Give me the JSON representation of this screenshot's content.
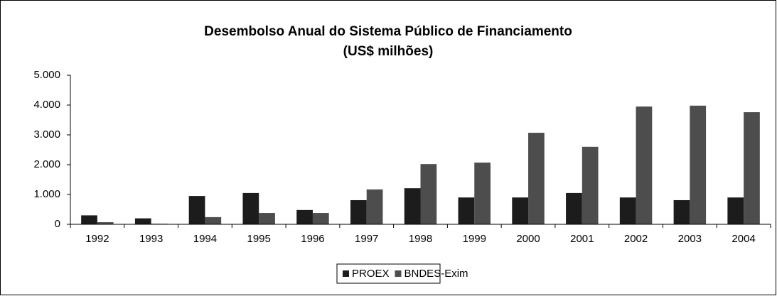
{
  "chart_data": {
    "type": "bar",
    "title": "Desembolso Anual do Sistema Público de Financiamento",
    "subtitle": "(US$ milhões)",
    "categories": [
      "1992",
      "1993",
      "1994",
      "1995",
      "1996",
      "1997",
      "1998",
      "1999",
      "2000",
      "2001",
      "2002",
      "2003",
      "2004"
    ],
    "series": [
      {
        "name": "PROEX",
        "color": "#1c1c1c",
        "values": [
          300,
          200,
          950,
          1050,
          480,
          810,
          1210,
          900,
          900,
          1050,
          900,
          810,
          900
        ]
      },
      {
        "name": "BNDES-Exim",
        "color": "#4d4d4d",
        "values": [
          70,
          20,
          240,
          380,
          380,
          1170,
          2020,
          2070,
          3070,
          2600,
          3950,
          3980,
          3760
        ]
      }
    ],
    "ylim": [
      0,
      5000
    ],
    "yticks": [
      0,
      {
        "value": 1000,
        "label": "1.000"
      },
      {
        "value": 2000,
        "label": "2.000"
      },
      {
        "value": 3000,
        "label": "3.000"
      },
      {
        "value": 4000,
        "label": "4.000"
      },
      {
        "value": 5000,
        "label": "5.000"
      }
    ],
    "grid": false,
    "legend": "bottom"
  }
}
